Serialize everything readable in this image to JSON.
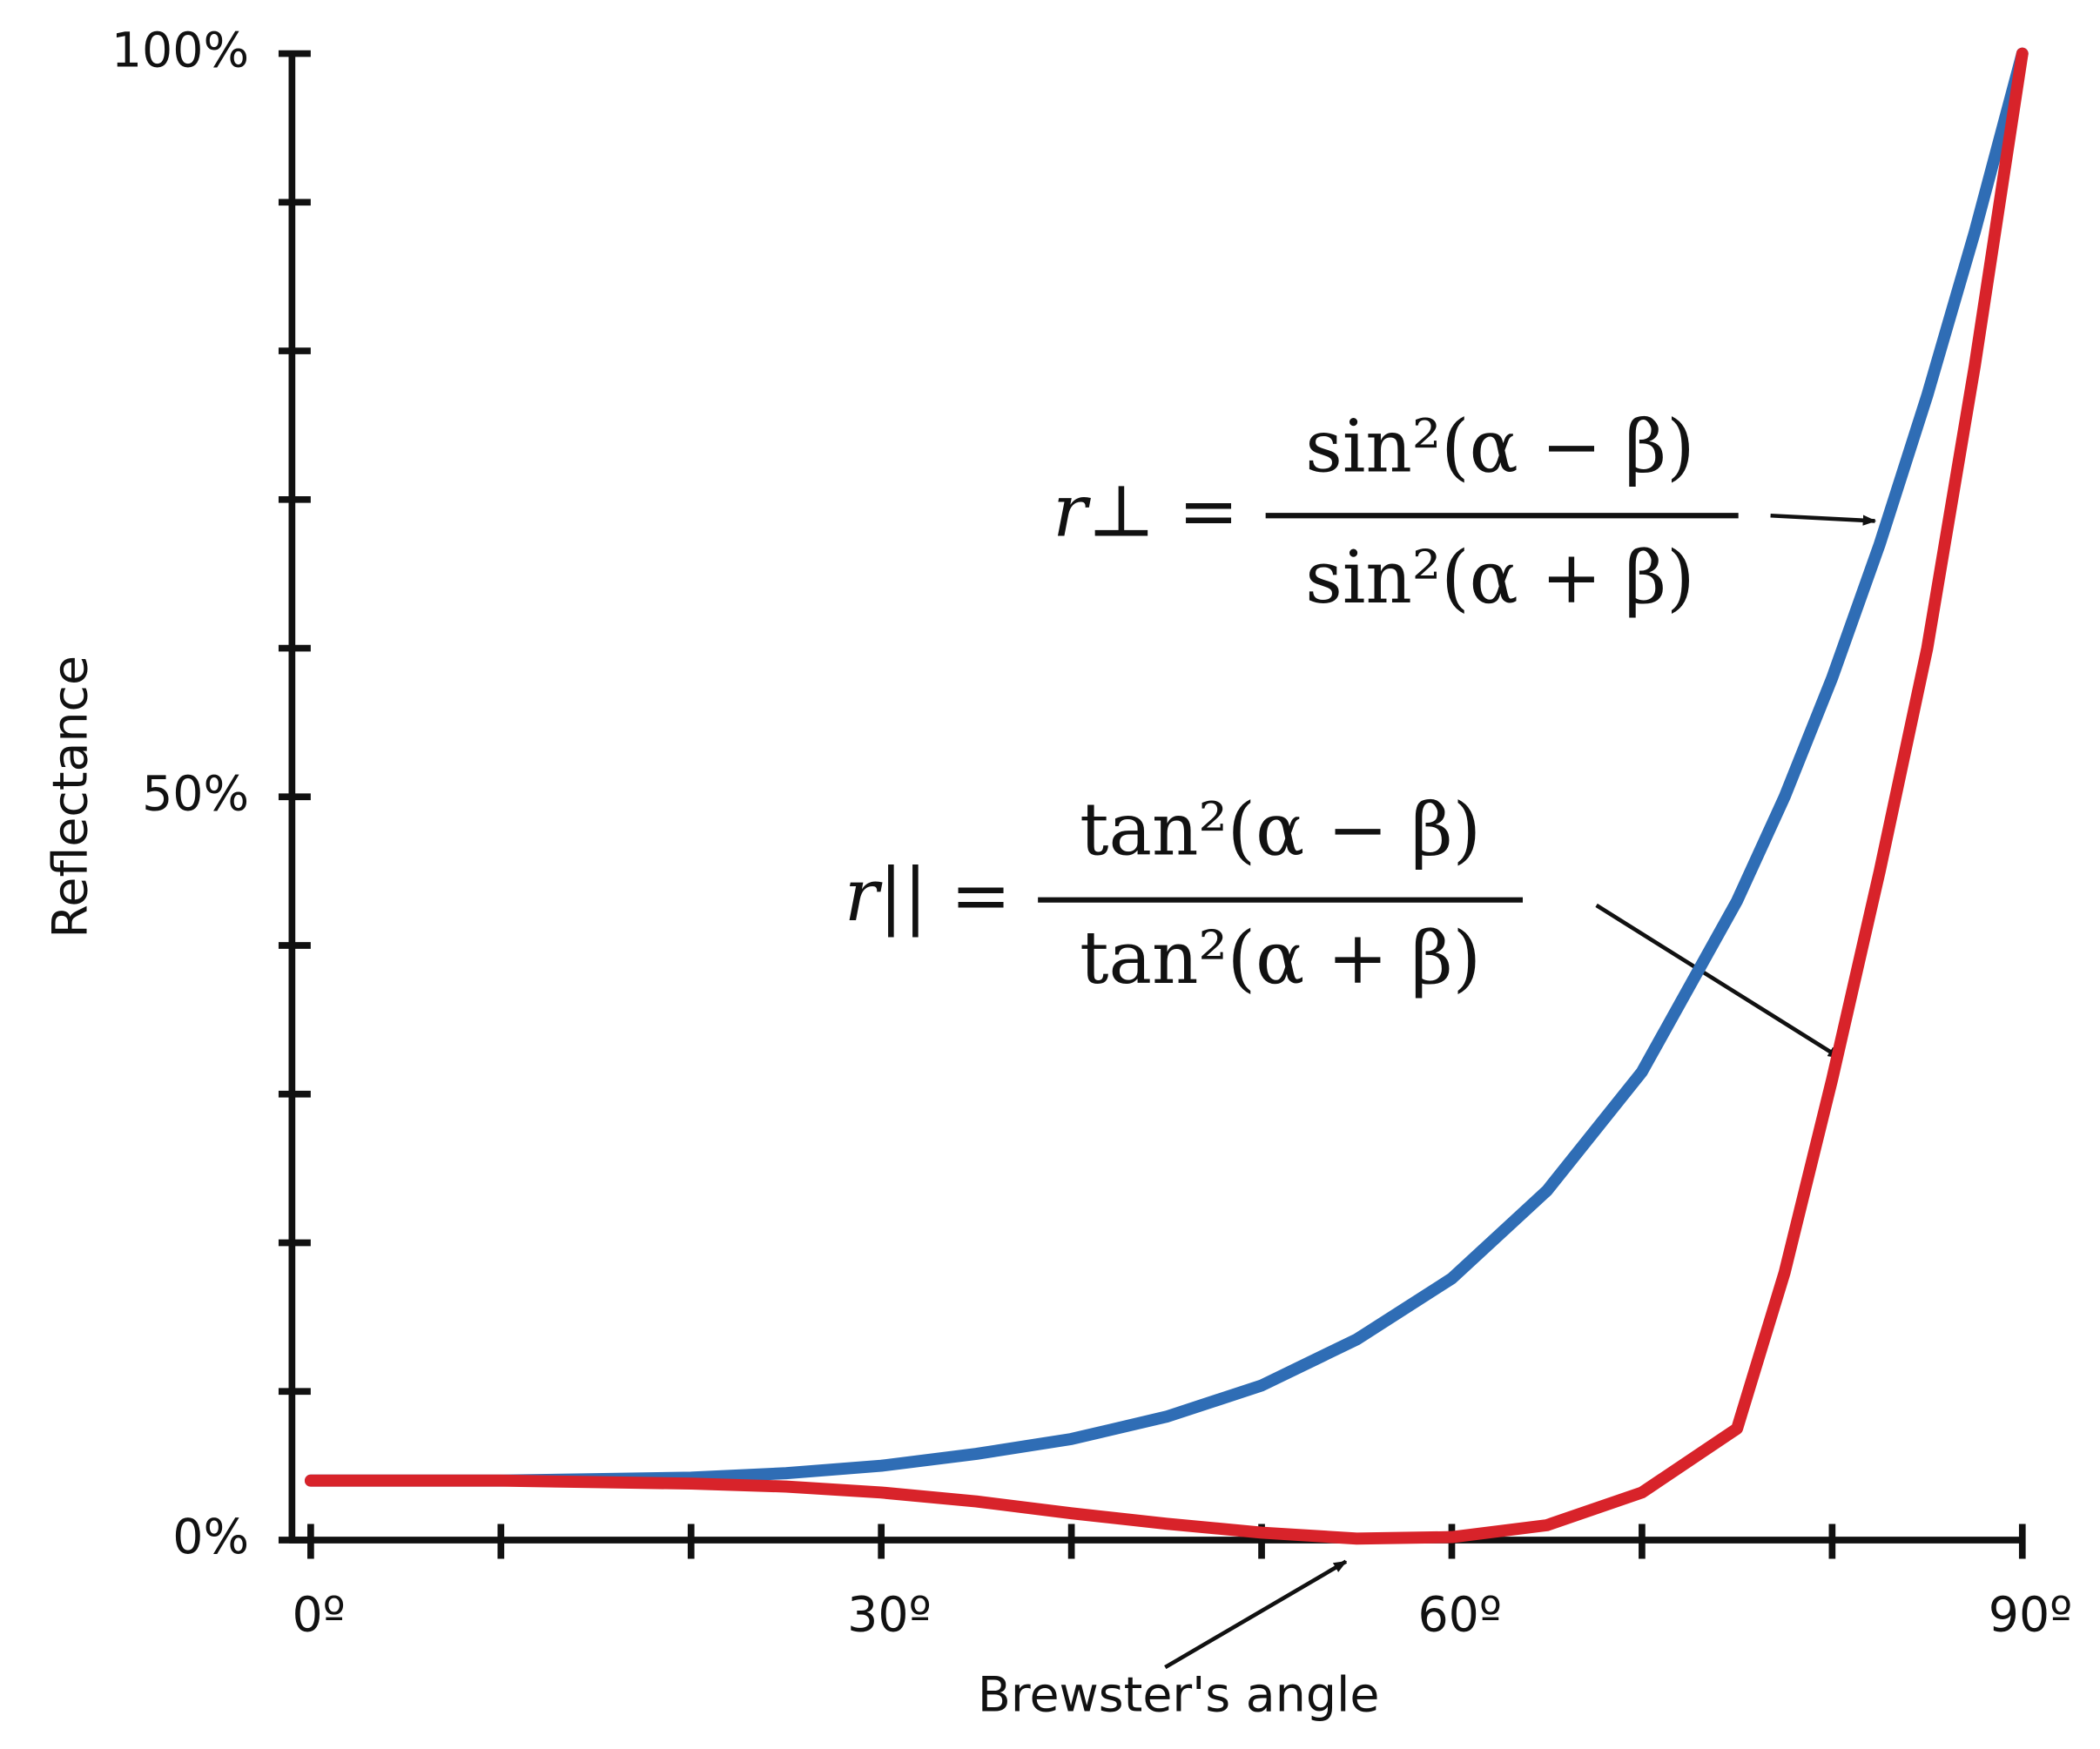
{
  "chart_data": {
    "type": "line",
    "y_label": "Reflectance",
    "x": [
      0,
      5,
      10,
      15,
      20,
      25,
      30,
      35,
      40,
      45,
      50,
      55,
      60,
      65,
      70,
      75,
      77.5,
      80,
      82.5,
      85,
      87.5,
      90
    ],
    "series": [
      {
        "color": "#2f6db5",
        "values": [
          4,
          4,
          4,
          4.1,
          4.2,
          4.5,
          5,
          5.8,
          6.8,
          8.3,
          10.4,
          13.5,
          17.6,
          23.5,
          31.5,
          43,
          50,
          58,
          67,
          77,
          88,
          100
        ]
      },
      {
        "color": "#d8232a",
        "values": [
          4,
          4,
          4,
          3.9,
          3.8,
          3.6,
          3.2,
          2.6,
          1.8,
          1.1,
          0.5,
          0.1,
          0.2,
          1,
          3.2,
          7.5,
          18,
          31,
          45,
          60,
          79,
          100
        ]
      }
    ],
    "xlim": [
      0,
      90
    ],
    "xticks": [
      {
        "value": 0,
        "label": "0º"
      },
      {
        "value": 30,
        "label": "30º"
      },
      {
        "value": 60,
        "label": "60º"
      },
      {
        "value": 90,
        "label": "90º"
      }
    ],
    "xminor": [
      10,
      20,
      40,
      50,
      70,
      80
    ],
    "ylim": [
      0,
      100
    ],
    "yticks": [
      {
        "value": 0,
        "label": "0%"
      },
      {
        "value": 50,
        "label": "50%"
      },
      {
        "value": 100,
        "label": "100%"
      }
    ],
    "yminor": [
      10,
      20,
      30,
      40,
      60,
      70,
      80,
      90
    ],
    "grid": false,
    "annotations": [
      {
        "lhs": "r⊥ =",
        "numerator": "sin²(α − β)",
        "denominator": "sin²(α + β)"
      },
      {
        "lhs": "r|| =",
        "numerator": "tan²(α − β)",
        "denominator": "tan²(α + β)"
      },
      {
        "text": "Brewster's angle"
      }
    ]
  }
}
